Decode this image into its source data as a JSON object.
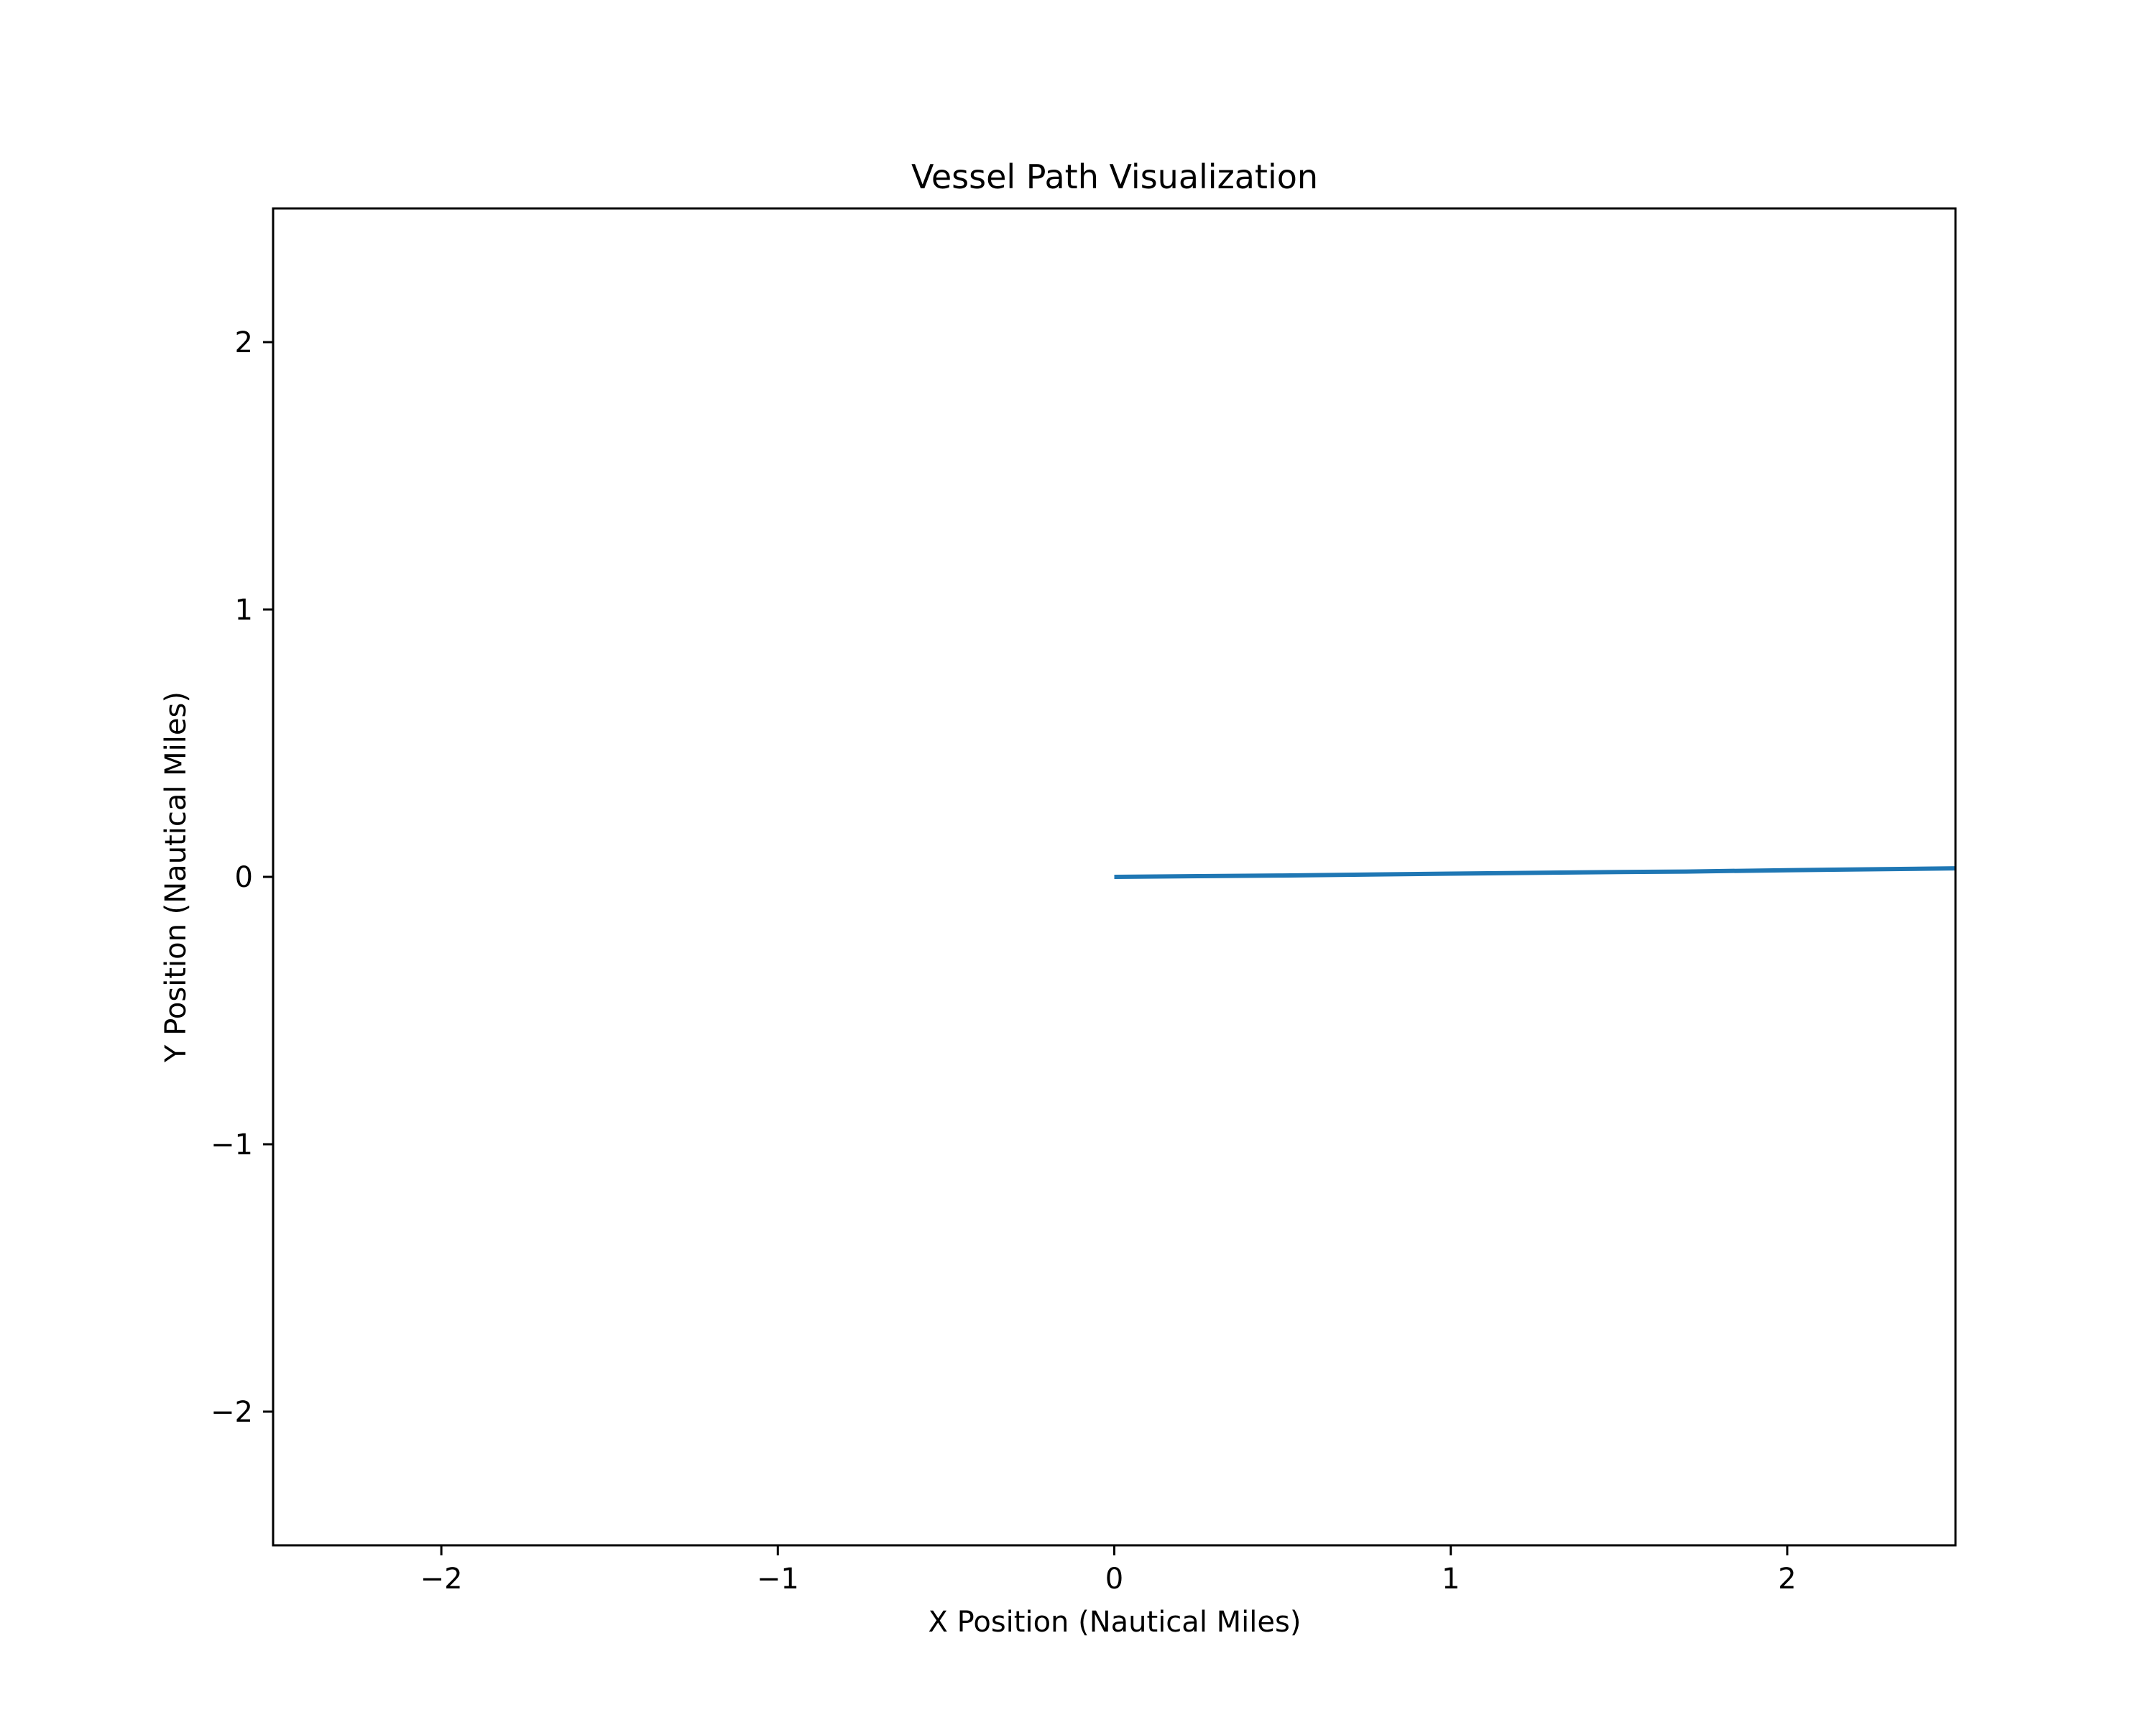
{
  "chart_data": {
    "type": "line",
    "title": "Vessel Path Visualization",
    "xlabel": "X Position (Nautical Miles)",
    "ylabel": "Y Position (Nautical Miles)",
    "xlim": [
      -2.5,
      2.5
    ],
    "ylim": [
      -2.5,
      2.5
    ],
    "xticks": [
      -2,
      -1,
      0,
      1,
      2
    ],
    "yticks": [
      -2,
      -1,
      0,
      1,
      2
    ],
    "xtick_labels": [
      "−2",
      "−1",
      "0",
      "1",
      "2"
    ],
    "ytick_labels": [
      "−2",
      "−1",
      "0",
      "1",
      "2"
    ],
    "grid": false,
    "legend": "none",
    "series": [
      {
        "color": "#1f77b4",
        "x": [
          0.0,
          0.5,
          1.0,
          1.5,
          1.7,
          2.0,
          2.5
        ],
        "y": [
          0.0,
          0.005,
          0.012,
          0.018,
          0.02,
          0.025,
          0.032
        ]
      }
    ]
  }
}
